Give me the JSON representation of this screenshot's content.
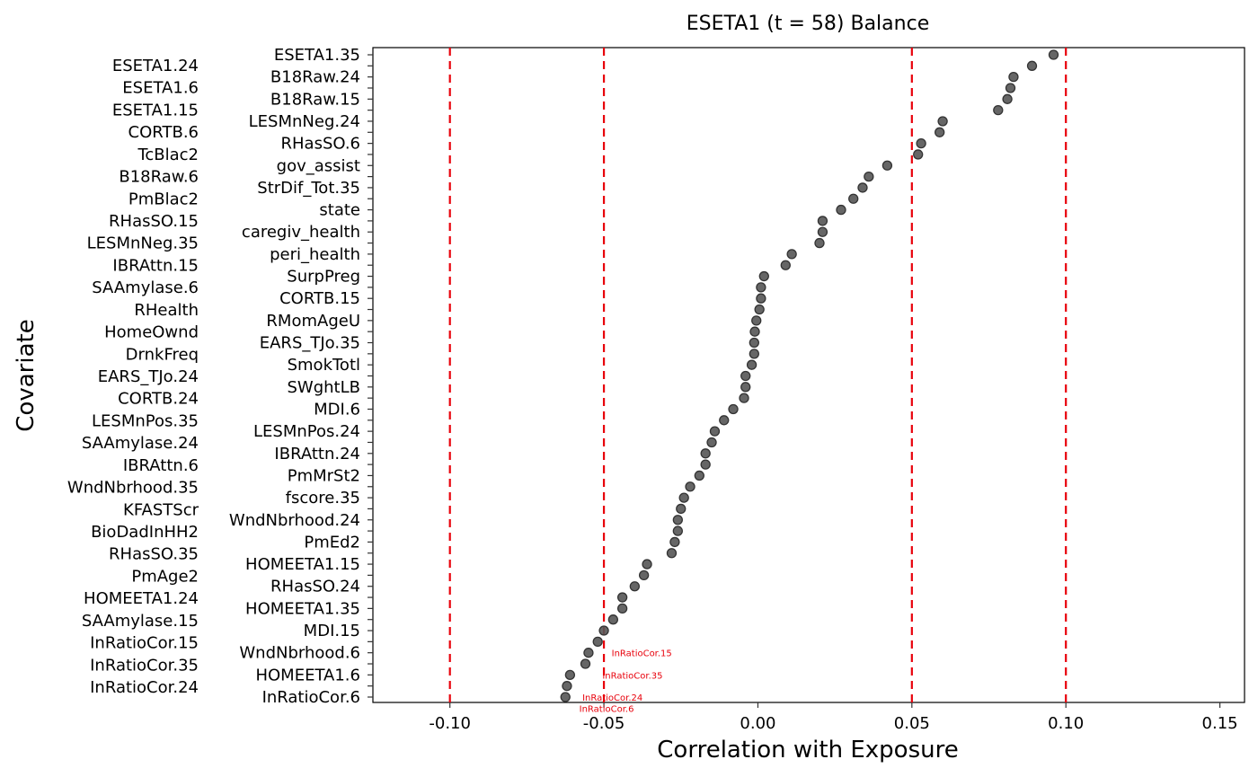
{
  "chart_data": {
    "type": "scatter",
    "title": "ESETA1 (t = 58) Balance",
    "xlabel": "Correlation with Exposure",
    "ylabel": "Covariate",
    "xlim": [
      -0.125,
      0.158
    ],
    "x_ticks": [
      -0.1,
      -0.05,
      0.0,
      0.05,
      0.1,
      0.15
    ],
    "x_tick_labels": [
      "-0.10",
      "-0.05",
      "0.00",
      "0.05",
      "0.10",
      "0.15"
    ],
    "reference_lines": [
      -0.1,
      -0.05,
      0.05,
      0.1
    ],
    "reference_line_color": "#e8000b",
    "point_color": "#555555",
    "grid": false,
    "labels_left": [
      "ESETA1.24",
      "ESETA1.6",
      "ESETA1.15",
      "CORTB.6",
      "TcBlac2",
      "B18Raw.6",
      "PmBlac2",
      "RHasSO.15",
      "LESMnNeg.35",
      "IBRAttn.15",
      "SAAmylase.6",
      "RHealth",
      "HomeOwnd",
      "DrnkFreq",
      "EARS_TJo.24",
      "CORTB.24",
      "LESMnPos.35",
      "SAAmylase.24",
      "IBRAttn.6",
      "WndNbrhood.35",
      "KFASTScr",
      "BioDadInHH2",
      "RHasSO.35",
      "PmAge2",
      "HOMEETA1.24",
      "SAAmylase.15",
      "InRatioCor.15",
      "InRatioCor.35",
      "InRatioCor.24"
    ],
    "labels_right": [
      "ESETA1.35",
      "B18Raw.24",
      "B18Raw.15",
      "LESMnNeg.24",
      "RHasSO.6",
      "gov_assist",
      "StrDif_Tot.35",
      "state",
      "caregiv_health",
      "peri_health",
      "SurpPreg",
      "CORTB.15",
      "RMomAgeU",
      "EARS_TJo.35",
      "SmokTotl",
      "SWghtLB",
      "MDI.6",
      "LESMnPos.24",
      "IBRAttn.24",
      "PmMrSt2",
      "fscore.35",
      "WndNbrhood.24",
      "PmEd2",
      "HOMEETA1.15",
      "RHasSO.24",
      "HOMEETA1.35",
      "MDI.15",
      "WndNbrhood.6",
      "HOMEETA1.6",
      "InRatioCor.6"
    ],
    "values_top_to_bottom": [
      0.096,
      0.089,
      0.083,
      0.082,
      0.081,
      0.078,
      0.06,
      0.059,
      0.053,
      0.052,
      0.042,
      0.036,
      0.034,
      0.031,
      0.027,
      0.021,
      0.021,
      0.02,
      0.011,
      0.009,
      0.002,
      0.001,
      0.001,
      0.0005,
      -0.0005,
      -0.001,
      -0.0012,
      -0.0012,
      -0.002,
      -0.004,
      -0.004,
      -0.0045,
      -0.008,
      -0.011,
      -0.014,
      -0.015,
      -0.017,
      -0.017,
      -0.019,
      -0.022,
      -0.024,
      -0.025,
      -0.026,
      -0.026,
      -0.027,
      -0.028,
      -0.036,
      -0.037,
      -0.04,
      -0.044,
      -0.044,
      -0.047,
      -0.05,
      -0.052,
      -0.055,
      -0.056,
      -0.061,
      -0.062,
      -0.0625
    ],
    "annotations": [
      {
        "text": "InRatioCor.15",
        "x": -0.0475,
        "y_index": 54
      },
      {
        "text": "InRatioCor.35",
        "x": -0.0505,
        "y_index": 56
      },
      {
        "text": "InRatioCor.24",
        "x": -0.057,
        "y_index": 58
      },
      {
        "text": "InRatioCor.6",
        "x": -0.058,
        "y_index": 59
      }
    ]
  }
}
